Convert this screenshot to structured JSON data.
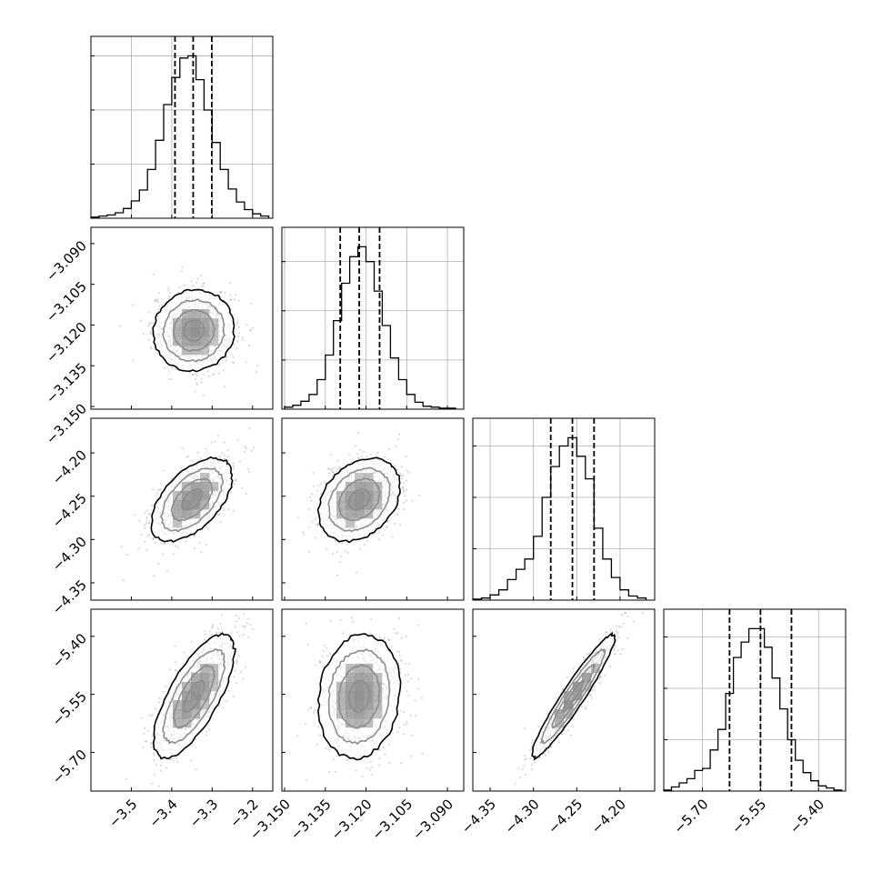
{
  "chart_data": {
    "type": "corner",
    "title": "",
    "params": [
      {
        "name": "",
        "range": [
          -3.6,
          -3.15
        ],
        "ticks": [
          -3.5,
          -3.4,
          -3.3,
          -3.2
        ],
        "tick_labels": [
          "−3.5",
          "−3.4",
          "−3.3",
          "−3.2"
        ],
        "quantiles": [
          -3.392,
          -3.347,
          -3.301
        ]
      },
      {
        "name": "",
        "range": [
          -3.151,
          -3.084
        ],
        "ticks": [
          -3.15,
          -3.135,
          -3.12,
          -3.105,
          -3.09
        ],
        "tick_labels": [
          "−3.150",
          "−3.135",
          "−3.120",
          "−3.105",
          "−3.090"
        ],
        "quantiles": [
          -3.1295,
          -3.1225,
          -3.115
        ]
      },
      {
        "name": "",
        "range": [
          -4.37,
          -4.16
        ],
        "ticks": [
          -4.35,
          -4.3,
          -4.25,
          -4.2
        ],
        "tick_labels": [
          "−4.35",
          "−4.30",
          "−4.25",
          "−4.20"
        ],
        "quantiles": [
          -4.28,
          -4.255,
          -4.23
        ]
      },
      {
        "name": "",
        "range": [
          -5.8,
          -5.33
        ],
        "ticks": [
          -5.7,
          -5.55,
          -5.4
        ],
        "tick_labels": [
          "−5.70",
          "−5.55",
          "−5.40"
        ],
        "quantiles": [
          -5.63,
          -5.55,
          -5.47
        ]
      }
    ],
    "y_tick_labels": {
      "row1": [
        "−3.090",
        "−3.105",
        "−3.120",
        "−3.135",
        "−3.150"
      ],
      "row2": [
        "−4.20",
        "−4.25",
        "−4.30",
        "−4.35"
      ],
      "row3": [
        "−5.40",
        "−5.55",
        "−5.70"
      ]
    },
    "histograms": [
      {
        "param": 0,
        "edges": [
          -3.6,
          -3.58,
          -3.56,
          -3.54,
          -3.52,
          -3.5,
          -3.48,
          -3.46,
          -3.44,
          -3.42,
          -3.4,
          -3.38,
          -3.36,
          -3.34,
          -3.32,
          -3.3,
          -3.28,
          -3.26,
          -3.24,
          -3.22,
          -3.2,
          -3.18,
          -3.16
        ],
        "counts": [
          1,
          2,
          3,
          5,
          9,
          16,
          26,
          45,
          72,
          105,
          130,
          148,
          150,
          128,
          100,
          70,
          45,
          27,
          15,
          8,
          4,
          2
        ],
        "yticks": [
          50,
          100,
          150
        ]
      },
      {
        "param": 1,
        "edges": [
          -3.15,
          -3.147,
          -3.144,
          -3.141,
          -3.138,
          -3.135,
          -3.132,
          -3.129,
          -3.126,
          -3.123,
          -3.12,
          -3.117,
          -3.114,
          -3.111,
          -3.108,
          -3.105,
          -3.102,
          -3.099,
          -3.096,
          -3.093,
          -3.09,
          -3.087
        ],
        "counts": [
          2,
          4,
          8,
          15,
          30,
          55,
          90,
          128,
          155,
          165,
          150,
          120,
          85,
          52,
          30,
          15,
          7,
          3,
          2,
          1,
          1
        ],
        "yticks": [
          50,
          100,
          150
        ]
      },
      {
        "param": 2,
        "edges": [
          -4.37,
          -4.36,
          -4.35,
          -4.34,
          -4.33,
          -4.32,
          -4.31,
          -4.3,
          -4.29,
          -4.28,
          -4.27,
          -4.26,
          -4.25,
          -4.24,
          -4.23,
          -4.22,
          -4.21,
          -4.2,
          -4.19,
          -4.18,
          -4.17
        ],
        "counts": [
          1,
          2,
          5,
          10,
          20,
          30,
          40,
          62,
          100,
          130,
          150,
          158,
          140,
          118,
          70,
          40,
          22,
          10,
          4,
          2
        ],
        "yticks": [
          50,
          100,
          150
        ]
      },
      {
        "param": 3,
        "edges": [
          -5.8,
          -5.78,
          -5.76,
          -5.74,
          -5.72,
          -5.7,
          -5.68,
          -5.66,
          -5.64,
          -5.62,
          -5.6,
          -5.58,
          -5.56,
          -5.54,
          -5.52,
          -5.5,
          -5.48,
          -5.46,
          -5.44,
          -5.42,
          -5.4,
          -5.38,
          -5.36,
          -5.34
        ],
        "counts": [
          1,
          4,
          8,
          12,
          20,
          22,
          40,
          60,
          95,
          130,
          145,
          158,
          158,
          140,
          110,
          80,
          50,
          30,
          18,
          10,
          5,
          3,
          1
        ],
        "yticks": [
          50,
          100,
          150
        ]
      }
    ],
    "pairs": [
      {
        "x_param": 0,
        "y_param": 1,
        "center": [
          -3.345,
          -3.122
        ],
        "sigma": [
          0.05,
          0.0075
        ],
        "rho": 0.05
      },
      {
        "x_param": 0,
        "y_param": 2,
        "center": [
          -3.35,
          -4.254
        ],
        "sigma": [
          0.05,
          0.024
        ],
        "rho": 0.55
      },
      {
        "x_param": 1,
        "y_param": 2,
        "center": [
          -3.1225,
          -4.254
        ],
        "sigma": [
          0.0075,
          0.024
        ],
        "rho": 0.3
      },
      {
        "x_param": 0,
        "y_param": 3,
        "center": [
          -3.345,
          -5.555
        ],
        "sigma": [
          0.05,
          0.08
        ],
        "rho": 0.72
      },
      {
        "x_param": 1,
        "y_param": 3,
        "center": [
          -3.1225,
          -5.555
        ],
        "sigma": [
          0.0075,
          0.08
        ],
        "rho": 0.12
      },
      {
        "x_param": 2,
        "y_param": 3,
        "center": [
          -4.254,
          -5.555
        ],
        "sigma": [
          0.024,
          0.08
        ],
        "rho": 0.95
      }
    ],
    "contour_levels_sigma": [
      0.5,
      1.0,
      1.5,
      2.0
    ],
    "grid": true,
    "colors": {
      "hist": "#000000",
      "contour": "#000000",
      "points": "#9a9a9a",
      "grid": "#b0b0b0",
      "density": "#000000"
    }
  }
}
